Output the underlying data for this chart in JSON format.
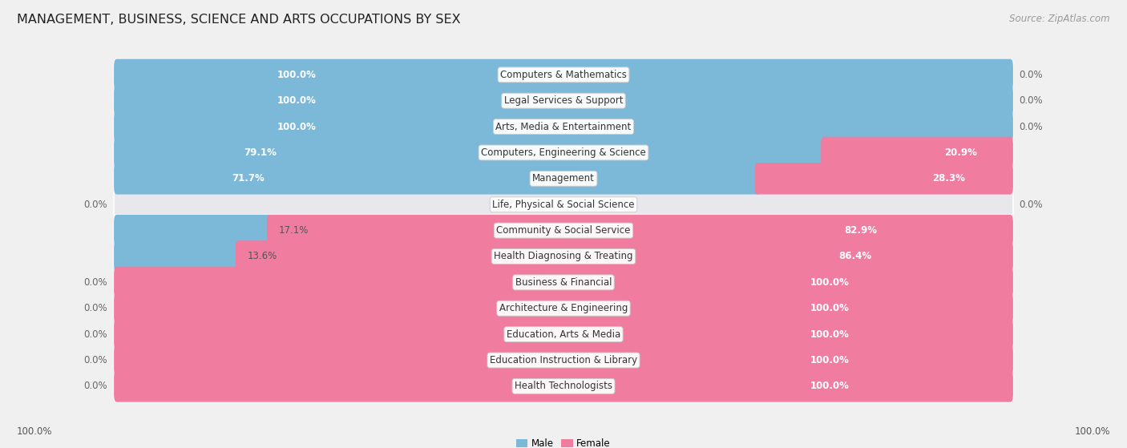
{
  "title": "MANAGEMENT, BUSINESS, SCIENCE AND ARTS OCCUPATIONS BY SEX",
  "source": "Source: ZipAtlas.com",
  "categories": [
    "Computers & Mathematics",
    "Legal Services & Support",
    "Arts, Media & Entertainment",
    "Computers, Engineering & Science",
    "Management",
    "Life, Physical & Social Science",
    "Community & Social Service",
    "Health Diagnosing & Treating",
    "Business & Financial",
    "Architecture & Engineering",
    "Education, Arts & Media",
    "Education Instruction & Library",
    "Health Technologists"
  ],
  "male": [
    100.0,
    100.0,
    100.0,
    79.1,
    71.7,
    0.0,
    17.1,
    13.6,
    0.0,
    0.0,
    0.0,
    0.0,
    0.0
  ],
  "female": [
    0.0,
    0.0,
    0.0,
    20.9,
    28.3,
    0.0,
    82.9,
    86.4,
    100.0,
    100.0,
    100.0,
    100.0,
    100.0
  ],
  "male_color": "#7cb8d8",
  "female_color": "#f07ca0",
  "male_label": "Male",
  "female_label": "Female",
  "bg_color": "#f0f0f0",
  "row_bg_color": "#e8e8ec",
  "label_bg_color": "#ffffff",
  "title_fontsize": 11.5,
  "label_fontsize": 8.5,
  "pct_fontsize": 8.5,
  "source_fontsize": 8.5
}
